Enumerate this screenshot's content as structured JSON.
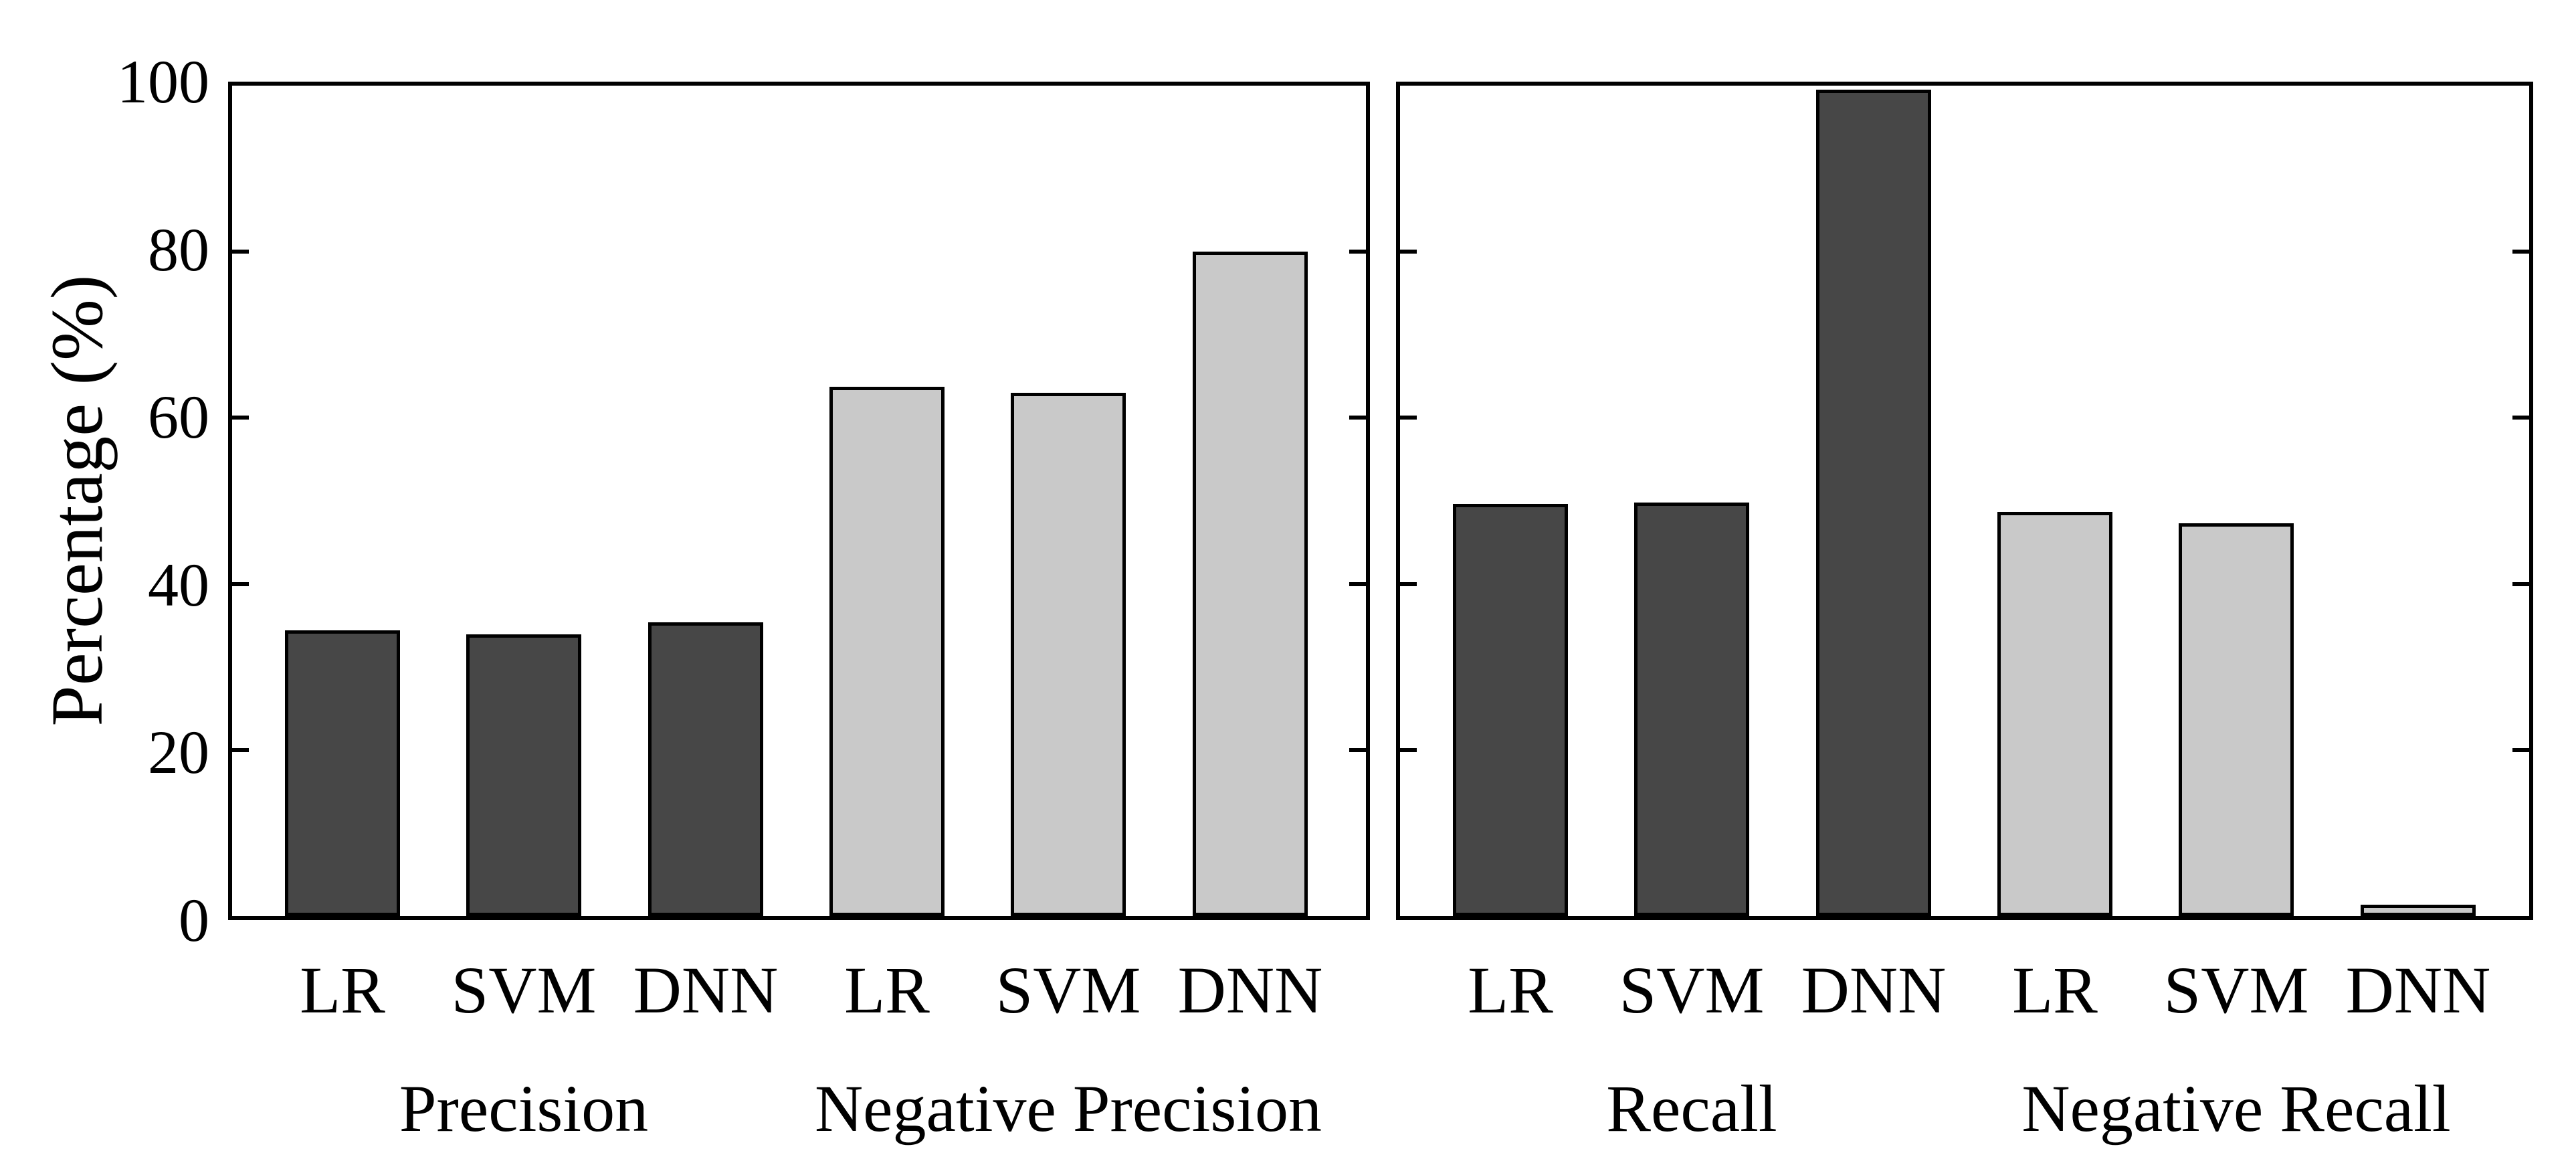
{
  "figure": {
    "y_axis_title": "Percentage (%)"
  },
  "chart_data": {
    "type": "bar",
    "title": "",
    "xlabel": "",
    "ylabel": "Percentage (%)",
    "ylim": [
      0,
      100
    ],
    "yticks": [
      0,
      20,
      40,
      60,
      80,
      100
    ],
    "grid": "off",
    "legend": "none",
    "bar_colors": {
      "dark": "#474747",
      "light": "#c9c9c9"
    },
    "bar_edge_color": "#000000",
    "panels": [
      {
        "groups": [
          {
            "label": "Precision",
            "shade": "dark",
            "categories": [
              "LR",
              "SVM",
              "DNN"
            ],
            "values": [
              34.4,
              33.9,
              35.4
            ]
          },
          {
            "label": "Negative Precision",
            "shade": "light",
            "categories": [
              "LR",
              "SVM",
              "DNN"
            ],
            "values": [
              63.7,
              63.0,
              80.0
            ]
          }
        ]
      },
      {
        "groups": [
          {
            "label": "Recall",
            "shade": "dark",
            "categories": [
              "LR",
              "SVM",
              "DNN"
            ],
            "values": [
              49.6,
              49.8,
              99.5
            ]
          },
          {
            "label": "Negative Recall",
            "shade": "light",
            "categories": [
              "LR",
              "SVM",
              "DNN"
            ],
            "values": [
              48.7,
              47.3,
              1.4
            ]
          }
        ]
      }
    ]
  }
}
